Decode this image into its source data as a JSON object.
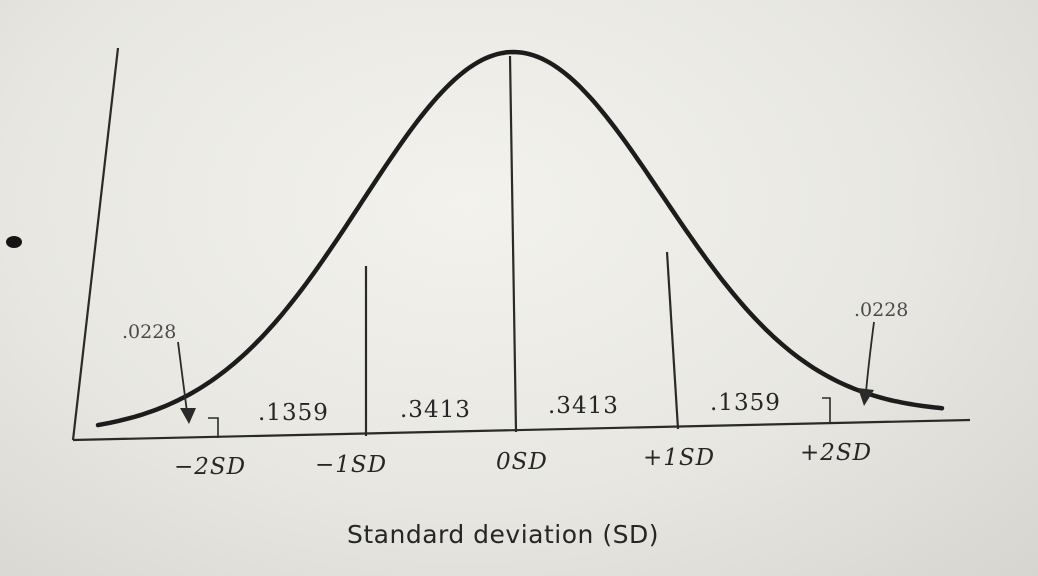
{
  "figure": {
    "area_labels": {
      "left_tail": ".0228",
      "minus2_to_minus1": ".1359",
      "minus1_to_0": ".3413",
      "zero_to_plus1": ".3413",
      "plus1_to_plus2": ".1359",
      "right_tail": ".0228"
    },
    "tick_labels": {
      "minus2": "−2SD",
      "minus1": "−1SD",
      "zero": "0SD",
      "plus1": "+1SD",
      "plus2": "+2SD"
    },
    "axis_title": "Standard deviation (SD)"
  },
  "chart_data": {
    "type": "area",
    "distribution": "normal",
    "xlabel": "Standard deviation (SD)",
    "categories": [
      "−2SD",
      "−1SD",
      "0SD",
      "+1SD",
      "+2SD"
    ],
    "regions": [
      {
        "range": [
          "-inf",
          "-2SD"
        ],
        "proportion": 0.0228
      },
      {
        "range": [
          "-2SD",
          "-1SD"
        ],
        "proportion": 0.1359
      },
      {
        "range": [
          "-1SD",
          "0SD"
        ],
        "proportion": 0.3413
      },
      {
        "range": [
          "0SD",
          "+1SD"
        ],
        "proportion": 0.3413
      },
      {
        "range": [
          "+1SD",
          "+2SD"
        ],
        "proportion": 0.1359
      },
      {
        "range": [
          "+2SD",
          "+inf"
        ],
        "proportion": 0.0228
      }
    ]
  }
}
